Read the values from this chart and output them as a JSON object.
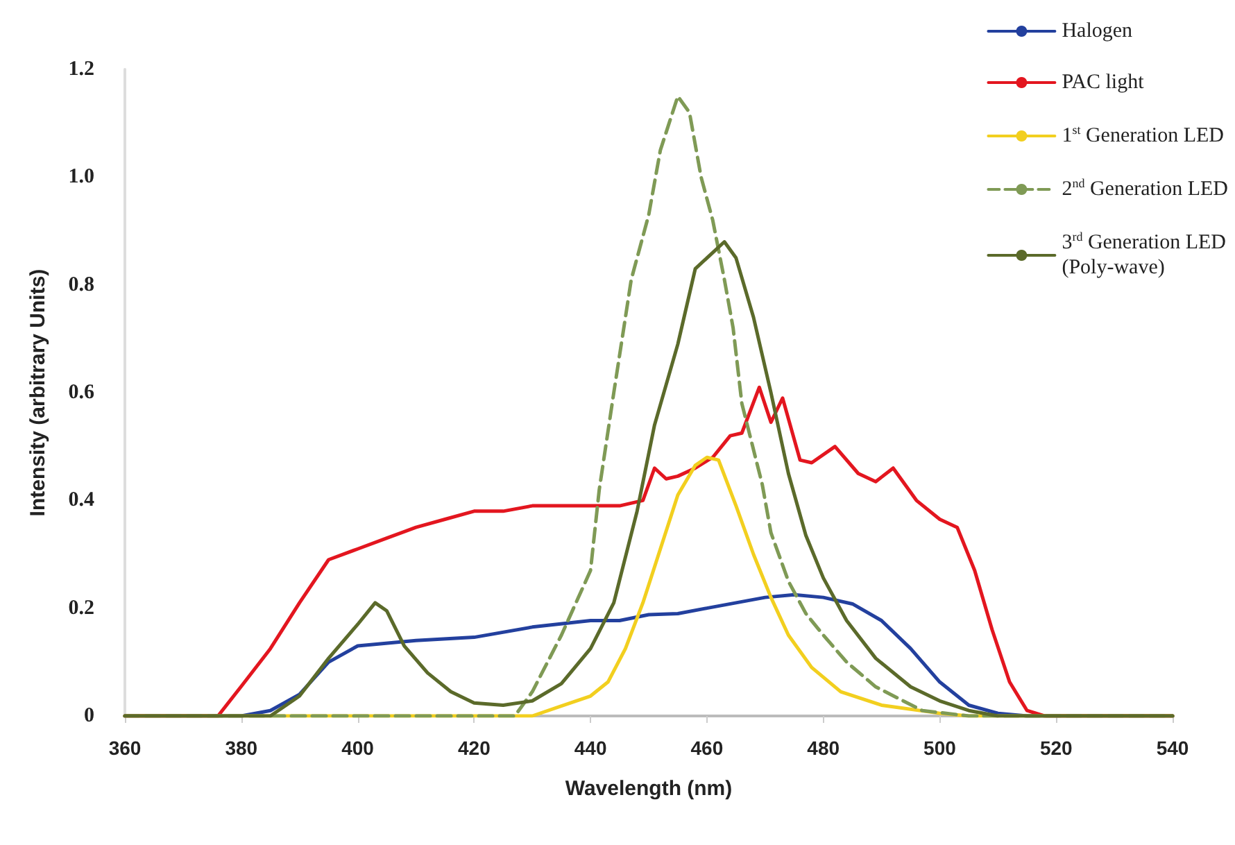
{
  "chart_data": {
    "type": "line",
    "xlabel": "Wavelength (nm)",
    "ylabel": "Intensity (arbitrary Units)",
    "xlim": [
      360,
      540
    ],
    "xticks": [
      360,
      380,
      400,
      420,
      440,
      460,
      480,
      500,
      520,
      540
    ],
    "ylim": [
      0,
      1.2
    ],
    "yticks": [
      0,
      0.2,
      0.4,
      0.6,
      0.8,
      {
        "value": 1,
        "label": "1.0"
      },
      1.2
    ],
    "grid": false,
    "legend": "top right",
    "marker": "none",
    "series": [
      {
        "name": "Halogen",
        "color": "#23409e",
        "x": [
          360,
          380,
          385,
          390,
          395,
          400,
          410,
          420,
          430,
          440,
          445,
          450,
          455,
          460,
          465,
          470,
          475,
          480,
          485,
          490,
          495,
          500,
          505,
          510,
          515,
          540
        ],
        "values": [
          0,
          0,
          0.01,
          0.04,
          0.1,
          0.13,
          0.14,
          0.146,
          0.165,
          0.177,
          0.177,
          0.188,
          0.19,
          0.2,
          0.21,
          0.22,
          0.225,
          0.22,
          0.208,
          0.177,
          0.125,
          0.063,
          0.02,
          0.005,
          0,
          0
        ]
      },
      {
        "name": "PAC light",
        "color": "#e3161f",
        "x": [
          360,
          376,
          380,
          385,
          390,
          395,
          400,
          405,
          410,
          415,
          420,
          425,
          430,
          440,
          445,
          449,
          451,
          453,
          455,
          458,
          461,
          464,
          466,
          469,
          471,
          473,
          476,
          478,
          482,
          486,
          489,
          492,
          496,
          500,
          503,
          506,
          509,
          512,
          515,
          518,
          540
        ],
        "values": [
          0,
          0,
          0.055,
          0.125,
          0.21,
          0.29,
          0.31,
          0.33,
          0.35,
          0.365,
          0.38,
          0.38,
          0.39,
          0.39,
          0.39,
          0.4,
          0.46,
          0.44,
          0.445,
          0.46,
          0.48,
          0.52,
          0.525,
          0.61,
          0.545,
          0.59,
          0.475,
          0.47,
          0.5,
          0.45,
          0.435,
          0.46,
          0.4,
          0.365,
          0.35,
          0.27,
          0.16,
          0.063,
          0.01,
          0,
          0
        ]
      },
      {
        "name": "1$^{st}$ Generation LED",
        "color": "#f2cf1f",
        "x": [
          360,
          430,
          440,
          443,
          446,
          449,
          452,
          455,
          458,
          460,
          462,
          465,
          468,
          471,
          474,
          478,
          483,
          490,
          500,
          505,
          540
        ],
        "values": [
          0,
          0,
          0.037,
          0.063,
          0.125,
          0.21,
          0.31,
          0.41,
          0.465,
          0.48,
          0.475,
          0.39,
          0.3,
          0.22,
          0.15,
          0.09,
          0.045,
          0.02,
          0.005,
          0,
          0
        ]
      },
      {
        "name": "2$^{nd}$ Generation LED",
        "color": "#7f9a55",
        "line_style": "dashed",
        "x": [
          360,
          427,
          430,
          435,
          440,
          441.5,
          444,
          447,
          450,
          452,
          455,
          457,
          459,
          461,
          463,
          464.5,
          466,
          469.5,
          471,
          474,
          477,
          480,
          484,
          489,
          497,
          505,
          540
        ],
        "values": [
          0,
          0,
          0.045,
          0.15,
          0.27,
          0.42,
          0.6,
          0.81,
          0.93,
          1.05,
          1.15,
          1.12,
          1,
          0.92,
          0.81,
          0.72,
          0.58,
          0.43,
          0.34,
          0.25,
          0.19,
          0.15,
          0.1,
          0.054,
          0.01,
          0,
          0
        ]
      },
      {
        "name": "3$^{rd}$ Generation LED\n(Poly-wave)",
        "color": "#5b6a2a",
        "x": [
          360,
          385,
          390,
          395,
          400,
          403,
          405,
          408,
          412,
          416,
          420,
          425,
          430,
          435,
          440,
          444,
          448,
          451,
          455,
          458,
          461,
          463,
          465,
          468,
          471,
          474,
          477,
          480,
          484,
          489,
          495,
          500,
          505,
          510,
          540
        ],
        "values": [
          0,
          0,
          0.037,
          0.107,
          0.17,
          0.21,
          0.195,
          0.13,
          0.08,
          0.045,
          0.024,
          0.02,
          0.028,
          0.06,
          0.125,
          0.21,
          0.38,
          0.54,
          0.69,
          0.83,
          0.86,
          0.88,
          0.85,
          0.74,
          0.6,
          0.45,
          0.335,
          0.256,
          0.177,
          0.107,
          0.054,
          0.028,
          0.01,
          0,
          0
        ]
      }
    ]
  }
}
